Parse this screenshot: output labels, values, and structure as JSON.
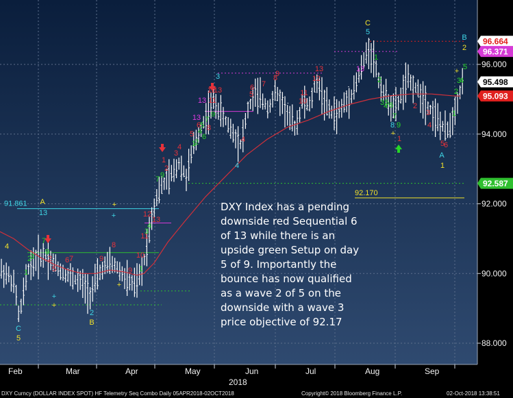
{
  "colors": {
    "background_top": "#0b2140",
    "background_bottom": "#2c4468",
    "price_bars": "#ffffff",
    "moving_average": "#d0303a",
    "setup_green": "#27d627",
    "countdown_red": "#e8323a",
    "cyan": "#3fd6e6",
    "yellow": "#f2e12a",
    "magenta": "#e03ae0"
  },
  "chart_data": {
    "type": "candlestick",
    "security": "DXY Index",
    "ylim": [
      87.4,
      96.9
    ],
    "y_ticks": [
      "88.000",
      "90.000",
      "92.000",
      "94.000",
      "96.000"
    ],
    "y_tick_values": [
      88,
      90,
      92,
      94,
      96
    ],
    "x_month_labels": [
      "Feb",
      "Mar",
      "Apr",
      "May",
      "Jun",
      "Jul",
      "Aug",
      "Sep"
    ],
    "x_year_label": "2018",
    "price_tags": [
      {
        "label": "96.664",
        "value": 96.664,
        "bg": "#ffffff",
        "fg": "#e0201e"
      },
      {
        "label": "96.371",
        "value": 96.371,
        "bg": "#d63ad6",
        "fg": "#ffffff"
      },
      {
        "label": "95.498",
        "value": 95.498,
        "bg": "#ffffff",
        "fg": "#000000"
      },
      {
        "label": "95.093",
        "value": 95.093,
        "bg": "#e0201e",
        "fg": "#ffffff"
      },
      {
        "label": "92.587",
        "value": 92.587,
        "bg": "#2fbf2f",
        "fg": "#ffffff"
      }
    ],
    "reference_lines": [
      {
        "label": "91.861",
        "value": 91.861,
        "color": "#3fd6e6"
      },
      {
        "label": "92.170",
        "value": 92.17,
        "color": "#f2e12a"
      },
      {
        "label": "",
        "value": 92.587,
        "color": "#2fbf2f"
      },
      {
        "label": "",
        "value": 96.664,
        "color": "#e0201e"
      },
      {
        "label": "",
        "value": 96.371,
        "color": "#d63ad6"
      }
    ],
    "moving_average": [
      [
        0,
        91.2
      ],
      [
        20,
        91.0
      ],
      [
        40,
        90.7
      ],
      [
        60,
        90.45
      ],
      [
        80,
        90.25
      ],
      [
        100,
        90.1
      ],
      [
        120,
        90.0
      ],
      [
        140,
        90.0
      ],
      [
        160,
        90.1
      ],
      [
        180,
        90.05
      ],
      [
        200,
        89.95
      ],
      [
        210,
        90.0
      ],
      [
        225,
        90.3
      ],
      [
        245,
        90.9
      ],
      [
        270,
        91.5
      ],
      [
        300,
        92.2
      ],
      [
        330,
        92.8
      ],
      [
        360,
        93.4
      ],
      [
        390,
        93.85
      ],
      [
        420,
        94.2
      ],
      [
        450,
        94.4
      ],
      [
        480,
        94.65
      ],
      [
        510,
        94.85
      ],
      [
        540,
        95.0
      ],
      [
        570,
        95.1
      ],
      [
        600,
        95.15
      ],
      [
        630,
        95.15
      ],
      [
        660,
        95.1
      ],
      [
        672,
        95.09
      ]
    ],
    "price_path": [
      [
        0,
        90.1
      ],
      [
        12,
        89.95
      ],
      [
        22,
        89.6
      ],
      [
        28,
        88.7
      ],
      [
        34,
        89.4
      ],
      [
        42,
        90.2
      ],
      [
        55,
        90.45
      ],
      [
        66,
        90.55
      ],
      [
        78,
        90.3
      ],
      [
        90,
        90.05
      ],
      [
        104,
        89.9
      ],
      [
        118,
        89.75
      ],
      [
        132,
        89.4
      ],
      [
        140,
        89.8
      ],
      [
        150,
        90.15
      ],
      [
        162,
        90.3
      ],
      [
        172,
        90.15
      ],
      [
        185,
        89.8
      ],
      [
        198,
        89.65
      ],
      [
        208,
        90.1
      ],
      [
        216,
        91.0
      ],
      [
        222,
        91.7
      ],
      [
        230,
        92.3
      ],
      [
        240,
        92.6
      ],
      [
        252,
        92.85
      ],
      [
        262,
        93.2
      ],
      [
        272,
        92.75
      ],
      [
        282,
        93.6
      ],
      [
        292,
        94.1
      ],
      [
        302,
        94.55
      ],
      [
        312,
        94.95
      ],
      [
        322,
        94.6
      ],
      [
        332,
        94.3
      ],
      [
        342,
        94.0
      ],
      [
        352,
        93.7
      ],
      [
        362,
        94.7
      ],
      [
        372,
        95.15
      ],
      [
        382,
        95.0
      ],
      [
        392,
        94.75
      ],
      [
        402,
        95.2
      ],
      [
        412,
        94.9
      ],
      [
        422,
        94.45
      ],
      [
        432,
        94.2
      ],
      [
        442,
        94.95
      ],
      [
        452,
        94.8
      ],
      [
        462,
        95.55
      ],
      [
        472,
        95.0
      ],
      [
        482,
        94.65
      ],
      [
        492,
        94.55
      ],
      [
        502,
        94.85
      ],
      [
        512,
        95.1
      ],
      [
        522,
        95.55
      ],
      [
        530,
        96.0
      ],
      [
        538,
        96.45
      ],
      [
        546,
        96.15
      ],
      [
        552,
        95.6
      ],
      [
        560,
        95.2
      ],
      [
        568,
        94.9
      ],
      [
        576,
        94.7
      ],
      [
        584,
        95.0
      ],
      [
        594,
        95.55
      ],
      [
        604,
        95.4
      ],
      [
        614,
        95.15
      ],
      [
        624,
        94.85
      ],
      [
        634,
        94.55
      ],
      [
        644,
        94.25
      ],
      [
        652,
        94.05
      ],
      [
        660,
        94.4
      ],
      [
        668,
        95.0
      ],
      [
        676,
        95.5
      ]
    ],
    "annotation": "DXY Index has a pending downside red Sequential 6 of 13 while there is an upside green Setup on day 5 of 9. Importantly the bounce has now qualified as a wave 2 of 5 on the downside with a wave 3 price objective of 92.17",
    "markers": [
      {
        "t": "4",
        "x": 10,
        "y": 363,
        "c": "yellow",
        "s": 11
      },
      {
        "t": "1",
        "x": 38,
        "y": 401,
        "c": "green",
        "s": 11
      },
      {
        "t": "2",
        "x": 43,
        "y": 381,
        "c": "green",
        "s": 11
      },
      {
        "t": "3",
        "x": 47,
        "y": 378,
        "c": "green",
        "s": 11
      },
      {
        "t": "A",
        "x": 62,
        "y": 298,
        "c": "yellow",
        "s": 11
      },
      {
        "t": "13",
        "x": 63,
        "y": 314,
        "c": "cyan",
        "s": 11
      },
      {
        "t": "7",
        "x": 64,
        "y": 355,
        "c": "green",
        "s": 11
      },
      {
        "t": "9",
        "x": 69,
        "y": 371,
        "c": "green",
        "s": 15
      },
      {
        "t": "2",
        "x": 73,
        "y": 381,
        "c": "red",
        "s": 11
      },
      {
        "t": "5",
        "x": 79,
        "y": 396,
        "c": "red",
        "s": 11
      },
      {
        "t": "6",
        "x": 98,
        "y": 383,
        "c": "red",
        "s": 11
      },
      {
        "t": "7",
        "x": 104,
        "y": 381,
        "c": "red",
        "s": 11
      },
      {
        "t": "9",
        "x": 148,
        "y": 381,
        "c": "red",
        "s": 11
      },
      {
        "t": "8",
        "x": 166,
        "y": 361,
        "c": "red",
        "s": 11
      },
      {
        "t": "9",
        "x": 190,
        "y": 398,
        "c": "red",
        "s": 11
      },
      {
        "t": "1",
        "x": 206,
        "y": 396,
        "c": "green",
        "s": 11
      },
      {
        "t": "10",
        "x": 205,
        "y": 376,
        "c": "red",
        "s": 11
      },
      {
        "t": "11",
        "x": 211,
        "y": 348,
        "c": "red",
        "s": 11
      },
      {
        "t": "3",
        "x": 214,
        "y": 341,
        "c": "green",
        "s": 11
      },
      {
        "t": "4",
        "x": 218,
        "y": 333,
        "c": "green",
        "s": 11
      },
      {
        "t": "12",
        "x": 215,
        "y": 316,
        "c": "red",
        "s": 15
      },
      {
        "t": "13",
        "x": 228,
        "y": 324,
        "c": "red",
        "s": 15
      },
      {
        "t": "7",
        "x": 230,
        "y": 265,
        "c": "green",
        "s": 11
      },
      {
        "t": "9",
        "x": 237,
        "y": 259,
        "c": "green",
        "s": 15
      },
      {
        "t": "1",
        "x": 239,
        "y": 237,
        "c": "red",
        "s": 11
      },
      {
        "t": "2",
        "x": 243,
        "y": 249,
        "c": "red",
        "s": 11
      },
      {
        "t": "4",
        "x": 262,
        "y": 218,
        "c": "red",
        "s": 11
      },
      {
        "t": "3",
        "x": 257,
        "y": 227,
        "c": "red",
        "s": 11
      },
      {
        "t": "1",
        "x": 283,
        "y": 213,
        "c": "green",
        "s": 11
      },
      {
        "t": "2",
        "x": 287,
        "y": 211,
        "c": "green",
        "s": 11
      },
      {
        "t": "5",
        "x": 280,
        "y": 199,
        "c": "red",
        "s": 11
      },
      {
        "t": "6",
        "x": 298,
        "y": 203,
        "c": "green",
        "s": 11
      },
      {
        "t": "4",
        "x": 292,
        "y": 195,
        "c": "green",
        "s": 11
      },
      {
        "t": "5",
        "x": 295,
        "y": 186,
        "c": "green",
        "s": 11
      },
      {
        "t": "7",
        "x": 302,
        "y": 178,
        "c": "green",
        "s": 11
      },
      {
        "t": "6",
        "x": 290,
        "y": 186,
        "c": "red",
        "s": 11
      },
      {
        "t": "8",
        "x": 305,
        "y": 190,
        "c": "red",
        "s": 11
      },
      {
        "t": "13",
        "x": 287,
        "y": 175,
        "c": "magenta",
        "s": 18
      },
      {
        "t": "9",
        "x": 311,
        "y": 170,
        "c": "green",
        "s": 15
      },
      {
        "t": "13",
        "x": 295,
        "y": 150,
        "c": "magenta",
        "s": 18
      },
      {
        "t": "11",
        "x": 310,
        "y": 150,
        "c": "red",
        "s": 11
      },
      {
        "t": "12",
        "x": 309,
        "y": 135,
        "c": "red",
        "s": 11
      },
      {
        "t": "13",
        "x": 318,
        "y": 135,
        "c": "red",
        "s": 18
      },
      {
        "t": "3",
        "x": 318,
        "y": 115,
        "c": "cyan",
        "s": 11
      },
      {
        "t": "4",
        "x": 346,
        "y": 245,
        "c": "cyan",
        "s": 11
      },
      {
        "t": "4",
        "x": 355,
        "y": 207,
        "c": "red",
        "s": 11
      },
      {
        "t": "6",
        "x": 368,
        "y": 131,
        "c": "red",
        "s": 11
      },
      {
        "t": "5",
        "x": 367,
        "y": 141,
        "c": "red",
        "s": 11
      },
      {
        "t": "7",
        "x": 385,
        "y": 126,
        "c": "red",
        "s": 11
      },
      {
        "t": "8",
        "x": 402,
        "y": 117,
        "c": "red",
        "s": 11
      },
      {
        "t": "9",
        "x": 405,
        "y": 111,
        "c": "red",
        "s": 11
      },
      {
        "t": "10",
        "x": 442,
        "y": 151,
        "c": "red",
        "s": 11
      },
      {
        "t": "11",
        "x": 444,
        "y": 139,
        "c": "red",
        "s": 11
      },
      {
        "t": "12",
        "x": 462,
        "y": 118,
        "c": "red",
        "s": 11
      },
      {
        "t": "13",
        "x": 466,
        "y": 104,
        "c": "red",
        "s": 18
      },
      {
        "t": "13",
        "x": 526,
        "y": 104,
        "c": "magenta",
        "s": 18
      },
      {
        "t": "C",
        "x": 537,
        "y": 37,
        "c": "yellow",
        "s": 11
      },
      {
        "t": "5",
        "x": 537,
        "y": 50,
        "c": "cyan",
        "s": 11
      },
      {
        "t": "1",
        "x": 549,
        "y": 87,
        "c": "green",
        "s": 11
      },
      {
        "t": "2",
        "x": 554,
        "y": 120,
        "c": "green",
        "s": 11
      },
      {
        "t": "3",
        "x": 558,
        "y": 153,
        "c": "green",
        "s": 11
      },
      {
        "t": "4",
        "x": 563,
        "y": 158,
        "c": "green",
        "s": 11
      },
      {
        "t": "5",
        "x": 565,
        "y": 153,
        "c": "green",
        "s": 11
      },
      {
        "t": "6",
        "x": 571,
        "y": 157,
        "c": "green",
        "s": 11
      },
      {
        "t": "7",
        "x": 576,
        "y": 173,
        "c": "green",
        "s": 11
      },
      {
        "t": "8",
        "x": 573,
        "y": 186,
        "c": "cyan",
        "s": 11
      },
      {
        "t": "9",
        "x": 582,
        "y": 186,
        "c": "green",
        "s": 15
      },
      {
        "t": "1",
        "x": 583,
        "y": 206,
        "c": "red",
        "s": 11
      },
      {
        "t": "2",
        "x": 606,
        "y": 158,
        "c": "red",
        "s": 11
      },
      {
        "t": "3",
        "x": 625,
        "y": 168,
        "c": "red",
        "s": 11
      },
      {
        "t": "4",
        "x": 627,
        "y": 186,
        "c": "red",
        "s": 11
      },
      {
        "t": "5",
        "x": 646,
        "y": 213,
        "c": "red",
        "s": 11
      },
      {
        "t": "6",
        "x": 651,
        "y": 215,
        "c": "red",
        "s": 11
      },
      {
        "t": "A",
        "x": 645,
        "y": 230,
        "c": "cyan",
        "s": 11
      },
      {
        "t": "1",
        "x": 646,
        "y": 245,
        "c": "yellow",
        "s": 11
      },
      {
        "t": "1",
        "x": 663,
        "y": 169,
        "c": "green",
        "s": 11
      },
      {
        "t": "2",
        "x": 666,
        "y": 137,
        "c": "green",
        "s": 11
      },
      {
        "t": "3",
        "x": 670,
        "y": 121,
        "c": "green",
        "s": 11
      },
      {
        "t": "4",
        "x": 674,
        "y": 121,
        "c": "green",
        "s": 11
      },
      {
        "t": "5",
        "x": 679,
        "y": 101,
        "c": "green",
        "s": 11
      },
      {
        "t": "B",
        "x": 678,
        "y": 58,
        "c": "cyan",
        "s": 11
      },
      {
        "t": "2",
        "x": 678,
        "y": 73,
        "c": "yellow",
        "s": 11
      },
      {
        "t": "2",
        "x": 134,
        "y": 460,
        "c": "cyan",
        "s": 11
      },
      {
        "t": "B",
        "x": 134,
        "y": 474,
        "c": "yellow",
        "s": 11
      },
      {
        "t": "C",
        "x": 27,
        "y": 483,
        "c": "cyan",
        "s": 11
      },
      {
        "t": "5",
        "x": 27,
        "y": 497,
        "c": "yellow",
        "s": 11
      }
    ]
  },
  "footer": {
    "left": "DXY Curncy (DOLLAR INDEX SPOT) HF Telemetry Seq Combo  Daily 05APR2018-02OCT2018",
    "center": "Copyright© 2018 Bloomberg Finance L.P.",
    "right": "02-Oct-2018 13:38:51"
  }
}
